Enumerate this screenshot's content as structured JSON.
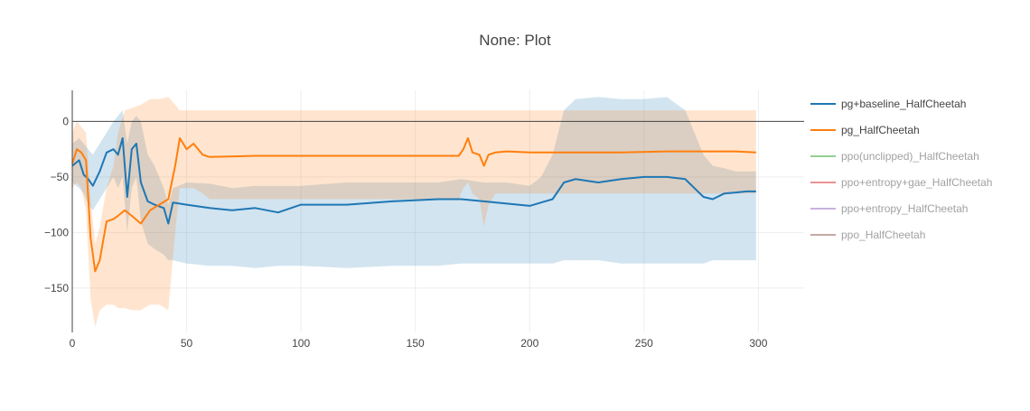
{
  "chart_data": {
    "type": "line",
    "title": "None: Plot",
    "xlabel": "",
    "ylabel": "",
    "xlim": [
      0,
      320
    ],
    "ylim": [
      -190,
      28
    ],
    "xticks": [
      0,
      50,
      100,
      150,
      200,
      250,
      300
    ],
    "xtick_labels": [
      "0",
      "50",
      "100",
      "150",
      "200",
      "250",
      "300"
    ],
    "yticks": [
      0,
      -50,
      -100,
      -150
    ],
    "ytick_labels": [
      "0",
      "−50",
      "−100",
      "−150"
    ],
    "grid": true,
    "legend_position": "right",
    "series": [
      {
        "name": "pg+baseline_HalfCheetah",
        "color": "#1f77b4",
        "visible": true,
        "band_opacity": 0.2,
        "x": [
          0,
          3,
          5,
          7,
          9,
          12,
          15,
          18,
          20,
          22,
          24,
          26,
          28,
          30,
          33,
          36,
          40,
          42,
          44,
          50,
          60,
          70,
          80,
          90,
          100,
          120,
          140,
          160,
          170,
          180,
          190,
          200,
          205,
          210,
          215,
          220,
          230,
          240,
          250,
          260,
          268,
          272,
          276,
          280,
          285,
          290,
          295,
          299
        ],
        "mean": [
          -40,
          -35,
          -48,
          -52,
          -58,
          -45,
          -28,
          -25,
          -30,
          -15,
          -68,
          -25,
          -20,
          -55,
          -72,
          -75,
          -78,
          -92,
          -73,
          -75,
          -78,
          -80,
          -78,
          -82,
          -75,
          -75,
          -72,
          -70,
          -70,
          -72,
          -74,
          -76,
          -73,
          -70,
          -55,
          -52,
          -55,
          -52,
          -50,
          -50,
          -52,
          -60,
          -68,
          -70,
          -65,
          -64,
          -63,
          -63
        ],
        "upper": [
          -20,
          -15,
          -20,
          -25,
          -30,
          -20,
          -10,
          0,
          5,
          10,
          -20,
          0,
          5,
          0,
          -30,
          -40,
          -60,
          -75,
          -60,
          -55,
          -56,
          -60,
          -58,
          -58,
          -58,
          -55,
          -55,
          -55,
          -52,
          -55,
          -55,
          -58,
          -50,
          -30,
          10,
          20,
          22,
          20,
          20,
          22,
          10,
          -10,
          -30,
          -40,
          -42,
          -45,
          -45,
          -45
        ],
        "lower": [
          -55,
          -60,
          -65,
          -75,
          -80,
          -70,
          -60,
          -50,
          -60,
          -50,
          -100,
          -60,
          -50,
          -90,
          -110,
          -115,
          -120,
          -125,
          -125,
          -128,
          -130,
          -130,
          -132,
          -130,
          -130,
          -132,
          -130,
          -130,
          -128,
          -128,
          -128,
          -128,
          -128,
          -128,
          -125,
          -125,
          -125,
          -128,
          -128,
          -128,
          -128,
          -128,
          -128,
          -125,
          -125,
          -125,
          -125,
          -125
        ]
      },
      {
        "name": "pg_HalfCheetah",
        "color": "#ff7f0e",
        "visible": true,
        "band_opacity": 0.2,
        "x": [
          0,
          2,
          4,
          6,
          8,
          10,
          12,
          15,
          18,
          20,
          23,
          26,
          30,
          34,
          38,
          42,
          45,
          47,
          50,
          53,
          57,
          60,
          80,
          100,
          120,
          150,
          169,
          171,
          173,
          175,
          178,
          180,
          182,
          185,
          190,
          200,
          210,
          220,
          240,
          260,
          280,
          290,
          299
        ],
        "mean": [
          -38,
          -25,
          -28,
          -35,
          -105,
          -135,
          -125,
          -90,
          -88,
          -85,
          -80,
          -85,
          -92,
          -80,
          -75,
          -70,
          -40,
          -15,
          -25,
          -20,
          -30,
          -32,
          -31,
          -31,
          -31,
          -31,
          -31,
          -25,
          -15,
          -28,
          -30,
          -40,
          -30,
          -28,
          -27,
          -28,
          -28,
          -28,
          -28,
          -27,
          -27,
          -27,
          -28
        ],
        "upper": [
          -10,
          0,
          -5,
          -10,
          -70,
          -110,
          -95,
          -60,
          -40,
          -10,
          10,
          12,
          15,
          20,
          20,
          22,
          15,
          10,
          10,
          10,
          10,
          10,
          10,
          10,
          10,
          10,
          10,
          10,
          10,
          10,
          10,
          10,
          10,
          10,
          10,
          10,
          10,
          10,
          10,
          10,
          10,
          10,
          10
        ],
        "lower": [
          -60,
          -55,
          -60,
          -80,
          -160,
          -185,
          -170,
          -165,
          -165,
          -168,
          -168,
          -170,
          -170,
          -165,
          -165,
          -170,
          -100,
          -60,
          -60,
          -60,
          -65,
          -70,
          -70,
          -70,
          -70,
          -70,
          -70,
          -60,
          -55,
          -65,
          -70,
          -95,
          -75,
          -65,
          -65,
          -65,
          -65,
          -65,
          -65,
          -65,
          -65,
          -65,
          -65
        ]
      },
      {
        "name": "ppo(unclipped)_HalfCheetah",
        "color": "#2ca02c",
        "visible": false
      },
      {
        "name": "ppo+entropy+gae_HalfCheetah",
        "color": "#d62728",
        "visible": false
      },
      {
        "name": "ppo+entropy_HalfCheetah",
        "color": "#9467bd",
        "visible": false
      },
      {
        "name": "ppo_HalfCheetah",
        "color": "#8c564b",
        "visible": false
      }
    ]
  }
}
